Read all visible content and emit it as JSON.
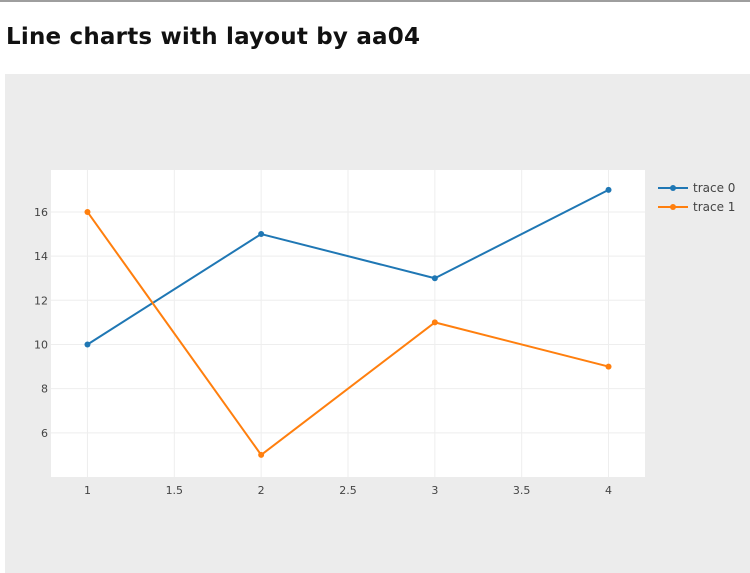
{
  "page": {
    "title": "Line charts with layout by aa04"
  },
  "chart_data": {
    "type": "line",
    "title": "",
    "xlabel": "",
    "ylabel": "",
    "xlim": [
      0.79,
      4.21
    ],
    "ylim": [
      4.0,
      17.9
    ],
    "x_ticks": [
      1,
      1.5,
      2,
      2.5,
      3,
      3.5,
      4
    ],
    "y_ticks": [
      6,
      8,
      10,
      12,
      14,
      16
    ],
    "grid": true,
    "legend": "right",
    "series": [
      {
        "name": "trace 0",
        "color": "#1f77b4",
        "x": [
          1,
          2,
          3,
          4
        ],
        "y": [
          10,
          15,
          13,
          17
        ]
      },
      {
        "name": "trace 1",
        "color": "#ff7f0e",
        "x": [
          1,
          2,
          3,
          4
        ],
        "y": [
          16,
          5,
          11,
          9
        ]
      }
    ]
  }
}
